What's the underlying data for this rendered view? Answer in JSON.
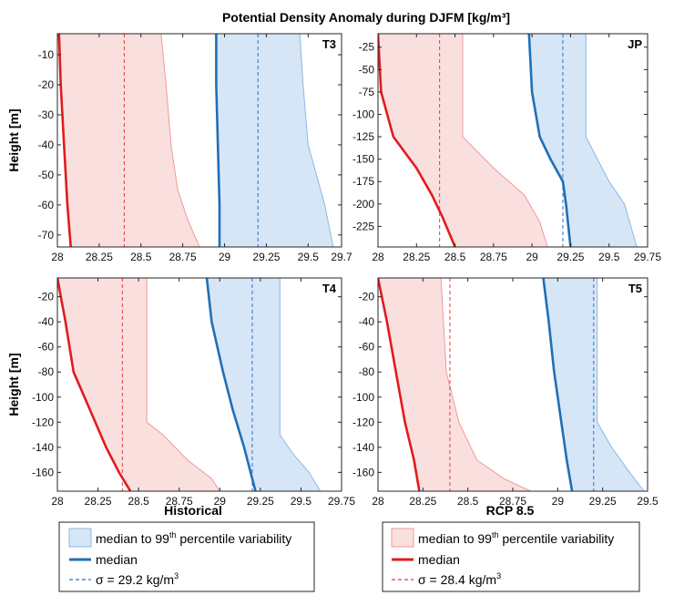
{
  "title": "Potential Density Anomaly during DJFM [kg/m³]",
  "colors": {
    "historical_fill": "#d6e6f7",
    "historical_edge": "#8db8e6",
    "historical_median": "#1f6fb8",
    "historical_sigma": "#2f6fc6",
    "rcp_fill": "#f9e0df",
    "rcp_edge": "#ef9a97",
    "rcp_median": "#e31a1c",
    "rcp_sigma": "#e8383a",
    "axis": "#262626"
  },
  "column_labels": {
    "left": "Historical",
    "right": "RCP 8.5"
  },
  "legends": {
    "left": {
      "band_label": "median to 99",
      "band_sup": "th",
      "band_suffix": " percentile variability",
      "median_label": "median",
      "sigma_label": "σ = 29.2 kg/m",
      "sigma_sup": "3"
    },
    "right": {
      "band_label": "median to 99",
      "band_sup": "th",
      "band_suffix": " percentile variability",
      "median_label": "median",
      "sigma_label": "σ = 28.4 kg/m",
      "sigma_sup": "3"
    }
  },
  "chart_data": [
    {
      "type": "area",
      "panel": "T3",
      "ylabel": "Height [m]",
      "xlim": [
        28,
        29.7
      ],
      "ylim": [
        -74,
        -3
      ],
      "xticks": [
        28,
        28.25,
        28.5,
        28.75,
        29,
        29.25,
        29.5,
        29.7
      ],
      "xticklabels": [
        "28",
        "28.25",
        "28.5",
        "28.75",
        "29",
        "29.25",
        "29.5",
        "29.7"
      ],
      "yticks": [
        -10,
        -20,
        -30,
        -40,
        -50,
        -60,
        -70
      ],
      "sigma_historical": 29.2,
      "sigma_rcp": 28.4,
      "series": [
        {
          "name": "Historical median",
          "points": [
            [
              28.95,
              -3
            ],
            [
              28.95,
              -20
            ],
            [
              28.96,
              -40
            ],
            [
              28.97,
              -60
            ],
            [
              28.97,
              -74
            ]
          ]
        },
        {
          "name": "Historical 99th percentile",
          "points": [
            [
              29.45,
              -3
            ],
            [
              29.47,
              -20
            ],
            [
              29.5,
              -40
            ],
            [
              29.55,
              -50
            ],
            [
              29.6,
              -60
            ],
            [
              29.65,
              -74
            ]
          ]
        },
        {
          "name": "RCP 8.5 median",
          "points": [
            [
              28.01,
              -3
            ],
            [
              28.02,
              -20
            ],
            [
              28.04,
              -40
            ],
            [
              28.06,
              -60
            ],
            [
              28.08,
              -74
            ]
          ]
        },
        {
          "name": "RCP 8.5 99th percentile",
          "points": [
            [
              28.62,
              -3
            ],
            [
              28.65,
              -20
            ],
            [
              28.68,
              -40
            ],
            [
              28.72,
              -55
            ],
            [
              28.78,
              -65
            ],
            [
              28.85,
              -74
            ]
          ]
        }
      ]
    },
    {
      "type": "area",
      "panel": "JP",
      "ylabel": "",
      "xlim": [
        28,
        29.75
      ],
      "ylim": [
        -248,
        -10
      ],
      "xticks": [
        28,
        28.25,
        28.5,
        28.75,
        29,
        29.25,
        29.5,
        29.75
      ],
      "xticklabels": [
        "28",
        "28.25",
        "28.5",
        "28.75",
        "29",
        "29.25",
        "29.5",
        "29.75"
      ],
      "yticks": [
        -25,
        -50,
        -75,
        -100,
        -125,
        -150,
        -175,
        -200,
        -225
      ],
      "sigma_historical": 29.2,
      "sigma_rcp": 28.4,
      "series": [
        {
          "name": "Historical median",
          "points": [
            [
              28.98,
              -10
            ],
            [
              29.0,
              -75
            ],
            [
              29.05,
              -125
            ],
            [
              29.12,
              -150
            ],
            [
              29.2,
              -175
            ],
            [
              29.22,
              -200
            ],
            [
              29.25,
              -248
            ]
          ]
        },
        {
          "name": "Historical 99th percentile",
          "points": [
            [
              29.35,
              -10
            ],
            [
              29.35,
              -125
            ],
            [
              29.5,
              -175
            ],
            [
              29.6,
              -200
            ],
            [
              29.68,
              -248
            ]
          ]
        },
        {
          "name": "RCP 8.5 median",
          "points": [
            [
              28.0,
              -10
            ],
            [
              28.02,
              -75
            ],
            [
              28.1,
              -125
            ],
            [
              28.25,
              -160
            ],
            [
              28.35,
              -190
            ],
            [
              28.42,
              -215
            ],
            [
              28.5,
              -248
            ]
          ]
        },
        {
          "name": "RCP 8.5 99th percentile",
          "points": [
            [
              28.55,
              -10
            ],
            [
              28.55,
              -125
            ],
            [
              28.75,
              -160
            ],
            [
              28.95,
              -190
            ],
            [
              29.05,
              -220
            ],
            [
              29.1,
              -248
            ]
          ]
        }
      ]
    },
    {
      "type": "area",
      "panel": "T4",
      "ylabel": "Height [m]",
      "xlim": [
        28,
        29.75
      ],
      "ylim": [
        -175,
        -5
      ],
      "xticks": [
        28,
        28.25,
        28.5,
        28.75,
        29,
        29.25,
        29.5,
        29.75
      ],
      "xticklabels": [
        "28",
        "28.25",
        "28.5",
        "28.75",
        "29",
        "29.25",
        "29.5",
        "29.75"
      ],
      "yticks": [
        -20,
        -40,
        -60,
        -80,
        -100,
        -120,
        -140,
        -160
      ],
      "sigma_historical": 29.2,
      "sigma_rcp": 28.4,
      "series": [
        {
          "name": "Historical median",
          "points": [
            [
              28.92,
              -5
            ],
            [
              28.95,
              -40
            ],
            [
              29.02,
              -80
            ],
            [
              29.08,
              -110
            ],
            [
              29.15,
              -140
            ],
            [
              29.2,
              -165
            ],
            [
              29.22,
              -175
            ]
          ]
        },
        {
          "name": "Historical 99th percentile",
          "points": [
            [
              29.37,
              -5
            ],
            [
              29.37,
              -130
            ],
            [
              29.45,
              -145
            ],
            [
              29.55,
              -160
            ],
            [
              29.62,
              -175
            ]
          ]
        },
        {
          "name": "RCP 8.5 median",
          "points": [
            [
              28.0,
              -5
            ],
            [
              28.05,
              -40
            ],
            [
              28.1,
              -80
            ],
            [
              28.2,
              -110
            ],
            [
              28.3,
              -140
            ],
            [
              28.38,
              -160
            ],
            [
              28.45,
              -175
            ]
          ]
        },
        {
          "name": "RCP 8.5 99th percentile",
          "points": [
            [
              28.55,
              -5
            ],
            [
              28.55,
              -120
            ],
            [
              28.65,
              -130
            ],
            [
              28.8,
              -150
            ],
            [
              28.95,
              -165
            ],
            [
              29.0,
              -175
            ]
          ]
        }
      ]
    },
    {
      "type": "area",
      "panel": "T5",
      "ylabel": "",
      "xlim": [
        28,
        29.5
      ],
      "ylim": [
        -175,
        -5
      ],
      "xticks": [
        28,
        28.25,
        28.5,
        28.75,
        29,
        29.25,
        29.5
      ],
      "xticklabels": [
        "28",
        "28.25",
        "28.5",
        "28.75",
        "29",
        "29.25",
        "29.5"
      ],
      "yticks": [
        -20,
        -40,
        -60,
        -80,
        -100,
        -120,
        -140,
        -160
      ],
      "sigma_historical": 29.2,
      "sigma_rcp": 28.4,
      "series": [
        {
          "name": "Historical median",
          "points": [
            [
              28.92,
              -5
            ],
            [
              28.95,
              -40
            ],
            [
              28.98,
              -80
            ],
            [
              29.02,
              -120
            ],
            [
              29.05,
              -150
            ],
            [
              29.08,
              -175
            ]
          ]
        },
        {
          "name": "Historical 99th percentile",
          "points": [
            [
              29.22,
              -5
            ],
            [
              29.22,
              -120
            ],
            [
              29.3,
              -140
            ],
            [
              29.4,
              -160
            ],
            [
              29.48,
              -175
            ]
          ]
        },
        {
          "name": "RCP 8.5 median",
          "points": [
            [
              28.0,
              -5
            ],
            [
              28.05,
              -40
            ],
            [
              28.1,
              -80
            ],
            [
              28.15,
              -120
            ],
            [
              28.2,
              -150
            ],
            [
              28.23,
              -175
            ]
          ]
        },
        {
          "name": "RCP 8.5 99th percentile",
          "points": [
            [
              28.35,
              -5
            ],
            [
              28.38,
              -80
            ],
            [
              28.45,
              -120
            ],
            [
              28.55,
              -150
            ],
            [
              28.7,
              -165
            ],
            [
              28.85,
              -175
            ]
          ]
        }
      ]
    }
  ]
}
